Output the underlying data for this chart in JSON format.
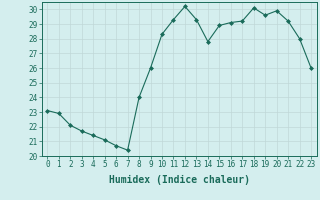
{
  "x": [
    0,
    1,
    2,
    3,
    4,
    5,
    6,
    7,
    8,
    9,
    10,
    11,
    12,
    13,
    14,
    15,
    16,
    17,
    18,
    19,
    20,
    21,
    22,
    23
  ],
  "y": [
    23.1,
    22.9,
    22.1,
    21.7,
    21.4,
    21.1,
    20.7,
    20.4,
    24.0,
    26.0,
    28.3,
    29.3,
    30.2,
    29.3,
    27.8,
    28.9,
    29.1,
    29.2,
    30.1,
    29.6,
    29.9,
    29.2,
    28.0,
    26.0
  ],
  "line_color": "#1a6b5a",
  "marker": "D",
  "marker_size": 2.0,
  "bg_color": "#d4eeee",
  "grid_color": "#c0d8d8",
  "xlabel": "Humidex (Indice chaleur)",
  "ylim": [
    20,
    30.5
  ],
  "xlim": [
    -0.5,
    23.5
  ],
  "yticks": [
    20,
    21,
    22,
    23,
    24,
    25,
    26,
    27,
    28,
    29,
    30
  ],
  "xticks": [
    0,
    1,
    2,
    3,
    4,
    5,
    6,
    7,
    8,
    9,
    10,
    11,
    12,
    13,
    14,
    15,
    16,
    17,
    18,
    19,
    20,
    21,
    22,
    23
  ],
  "tick_fontsize": 5.5,
  "xlabel_fontsize": 7.0,
  "linewidth": 0.8
}
